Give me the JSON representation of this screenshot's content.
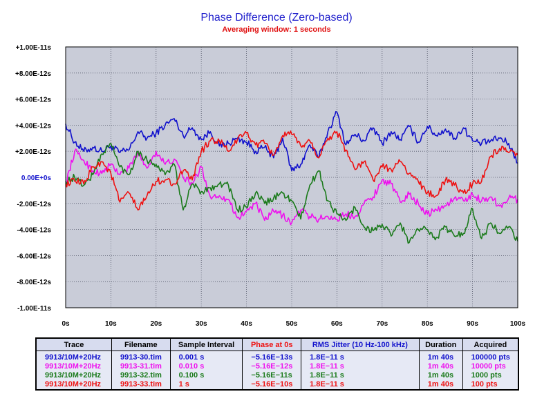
{
  "chart_data": {
    "type": "line",
    "title": "Phase Difference (Zero-based)",
    "subtitle": "Averaging window: 1 seconds",
    "xlim": [
      0,
      100
    ],
    "ylim": [
      -1e-11,
      1e-11
    ],
    "grid": true,
    "x_tick_labels": [
      "0s",
      "10s",
      "20s",
      "30s",
      "40s",
      "50s",
      "60s",
      "70s",
      "80s",
      "90s",
      "100s"
    ],
    "y_tick_labels": [
      "+1.00E-11s",
      "+8.00E-12s",
      "+6.00E-12s",
      "+4.00E-12s",
      "+2.00E-12s",
      "0.00E+0s",
      "-2.00E-12s",
      "-4.00E-12s",
      "-6.00E-12s",
      "-8.00E-12s",
      "-1.00E-11s"
    ],
    "x": [
      0,
      2,
      4,
      6,
      8,
      10,
      12,
      14,
      16,
      18,
      20,
      22,
      24,
      26,
      28,
      30,
      32,
      34,
      36,
      38,
      40,
      42,
      44,
      46,
      48,
      50,
      52,
      54,
      56,
      58,
      60,
      62,
      64,
      66,
      68,
      70,
      72,
      74,
      76,
      78,
      80,
      82,
      84,
      86,
      88,
      90,
      92,
      94,
      96,
      98,
      100
    ],
    "series": [
      {
        "color": "#1010cc",
        "values": [
          4.1,
          2.7,
          2.0,
          2.3,
          2.0,
          2.4,
          1.9,
          2.1,
          3.5,
          3.0,
          3.4,
          4.0,
          4.5,
          3.2,
          3.8,
          2.9,
          3.5,
          2.4,
          2.6,
          3.0,
          2.7,
          2.0,
          2.3,
          1.5,
          3.0,
          0.5,
          1.0,
          2.5,
          1.5,
          3.5,
          5.0,
          2.5,
          3.3,
          2.8,
          3.8,
          2.6,
          3.5,
          2.9,
          3.9,
          2.7,
          3.9,
          3.2,
          3.7,
          3.0,
          3.8,
          2.8,
          2.6,
          2.8,
          3.0,
          2.6,
          1.1
        ]
      },
      {
        "color": "#ee10ee",
        "values": [
          -0.5,
          2.0,
          1.3,
          0.5,
          0.3,
          1.0,
          0.2,
          0.7,
          1.9,
          0.7,
          2.0,
          1.0,
          1.4,
          0.0,
          -0.5,
          0.8,
          -1.5,
          -1.4,
          -1.7,
          -3.1,
          -2.6,
          -2.0,
          -3.3,
          -2.6,
          -2.9,
          -3.5,
          -2.5,
          -3.0,
          -3.2,
          -3.0,
          -3.2,
          -2.8,
          -3.0,
          -2.0,
          -1.5,
          -0.2,
          -0.5,
          -1.9,
          -1.3,
          -2.0,
          -2.8,
          -2.5,
          -2.2,
          -1.6,
          -1.8,
          -1.3,
          -1.8,
          -1.5,
          -2.2,
          -1.6,
          -1.7
        ]
      },
      {
        "color": "#1a7a1a",
        "values": [
          -0.3,
          0.0,
          -0.6,
          0.2,
          1.8,
          2.6,
          0.8,
          0.2,
          2.0,
          1.3,
          1.0,
          0.2,
          1.0,
          -2.5,
          -0.5,
          -1.1,
          -0.8,
          -0.5,
          -0.6,
          -2.5,
          -2.3,
          -1.2,
          -2.0,
          -1.6,
          -1.2,
          -1.8,
          -3.2,
          -0.6,
          0.5,
          -1.8,
          -2.8,
          -3.3,
          -2.3,
          -3.8,
          -4.1,
          -3.6,
          -4.5,
          -3.5,
          -5.0,
          -4.0,
          -4.0,
          -4.6,
          -3.8,
          -4.5,
          -4.3,
          -2.4,
          -4.7,
          -3.5,
          -4.3,
          -3.8,
          -4.9
        ]
      },
      {
        "color": "#ee1010",
        "values": [
          -0.5,
          -0.3,
          -0.5,
          0.8,
          1.2,
          0.3,
          -1.9,
          -1.2,
          -2.5,
          -1.4,
          -0.3,
          -0.2,
          -0.5,
          0.5,
          -0.2,
          2.0,
          2.8,
          2.8,
          2.0,
          2.9,
          3.4,
          2.5,
          2.6,
          1.7,
          3.2,
          3.3,
          2.4,
          2.8,
          1.5,
          3.0,
          3.5,
          2.1,
          0.6,
          1.2,
          -0.2,
          0.8,
          0.6,
          1.2,
          0.3,
          -0.3,
          -1.2,
          -1.4,
          -0.2,
          -0.6,
          -1.2,
          -0.5,
          -0.3,
          1.6,
          2.2,
          1.9,
          1.7
        ]
      }
    ]
  },
  "legend": {
    "headers": [
      {
        "label": "Trace",
        "color": "#000000"
      },
      {
        "label": "Filename",
        "color": "#000000"
      },
      {
        "label": "Sample Interval",
        "color": "#000000"
      },
      {
        "label": "Phase at 0s",
        "color": "#ee1010"
      },
      {
        "label": "RMS Jitter (10 Hz-100 kHz)",
        "color": "#1010cc"
      },
      {
        "label": "Duration",
        "color": "#000000"
      },
      {
        "label": "Acquired",
        "color": "#000000"
      }
    ],
    "rows": [
      {
        "color": "#1010cc",
        "trace": "9913/10M+20Hz",
        "filename": "9913-30.tim",
        "interval": "0.001 s",
        "phase": "−5.16E−13s",
        "jitter": "1.8E−11 s",
        "duration": "1m 40s",
        "acquired": "100000 pts"
      },
      {
        "color": "#ee10ee",
        "trace": "9913/10M+20Hz",
        "filename": "9913-31.tim",
        "interval": "0.010 s",
        "phase": "−5.16E−12s",
        "jitter": "1.8E−11 s",
        "duration": "1m 40s",
        "acquired": "10000 pts"
      },
      {
        "color": "#1a7a1a",
        "trace": "9913/10M+20Hz",
        "filename": "9913-32.tim",
        "interval": "0.100 s",
        "phase": "−5.16E−11s",
        "jitter": "1.8E−11 s",
        "duration": "1m 40s",
        "acquired": "1000 pts"
      },
      {
        "color": "#ee1010",
        "trace": "9913/10M+20Hz",
        "filename": "9913-33.tim",
        "interval": "1 s",
        "phase": "−5.16E−10s",
        "jitter": "1.8E−11 s",
        "duration": "1m 40s",
        "acquired": "100 pts"
      }
    ]
  }
}
